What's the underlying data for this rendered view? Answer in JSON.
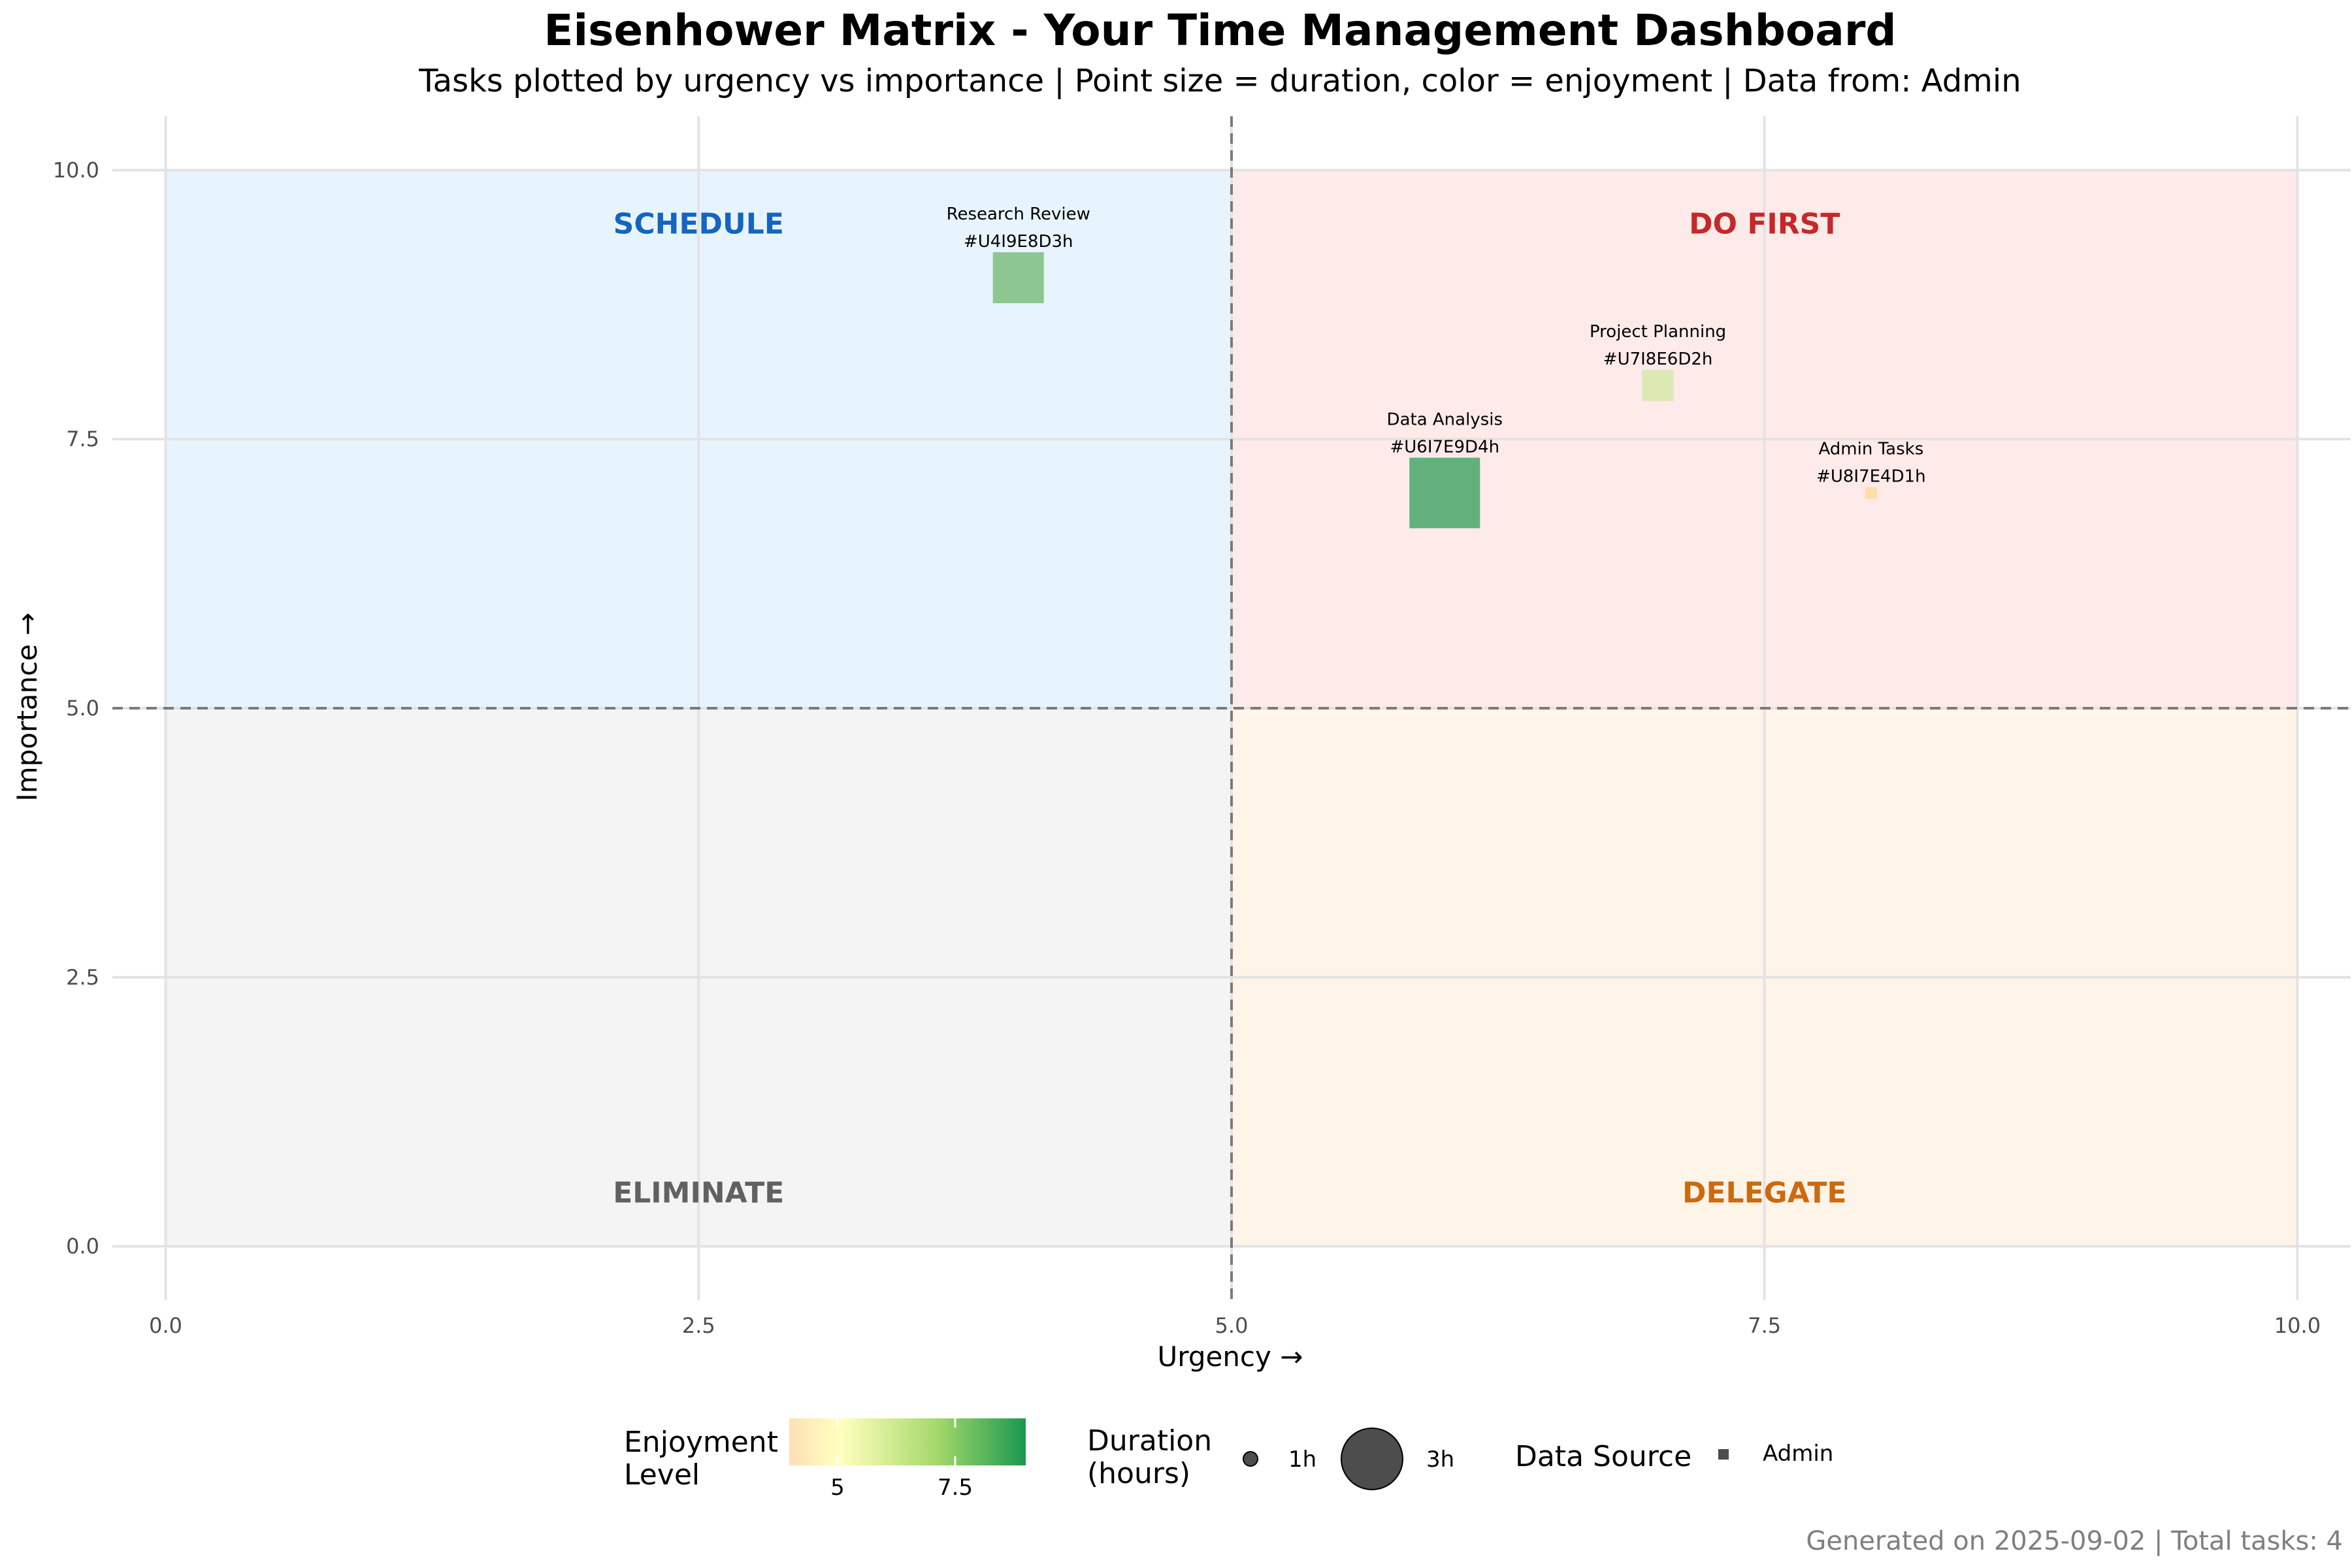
{
  "chart_data": {
    "type": "scatter",
    "title": "Eisenhower Matrix - Your Time Management Dashboard",
    "subtitle": "Tasks plotted by urgency vs importance | Point size = duration, color = enjoyment | Data from: Admin",
    "xlabel": "Urgency →",
    "ylabel": "Importance →",
    "xlim": [
      -0.25,
      10.25
    ],
    "ylim": [
      -0.5,
      10.5
    ],
    "x_ticks": [
      "0.0",
      "2.5",
      "5.0",
      "7.5",
      "10.0"
    ],
    "y_ticks": [
      "0.0",
      "2.5",
      "5.0",
      "7.5",
      "10.0"
    ],
    "grid": true,
    "threshold_lines": {
      "x": 5,
      "y": 5
    },
    "quadrants": [
      {
        "label": "SCHEDULE",
        "x": [
          0,
          5
        ],
        "y": [
          5,
          10
        ],
        "fill": "#e8f4fd",
        "label_color": "#1565c0",
        "label_pos": [
          2.5,
          9.5
        ]
      },
      {
        "label": "DO FIRST",
        "x": [
          5,
          10
        ],
        "y": [
          5,
          10
        ],
        "fill": "#ffeaea",
        "label_color": "#c62828",
        "label_pos": [
          7.5,
          9.5
        ]
      },
      {
        "label": "ELIMINATE",
        "x": [
          0,
          5
        ],
        "y": [
          0,
          5
        ],
        "fill": "#f4f4f4",
        "label_color": "#616161",
        "label_pos": [
          2.5,
          0.5
        ]
      },
      {
        "label": "DELEGATE",
        "x": [
          5,
          10
        ],
        "y": [
          0,
          5
        ],
        "fill": "#fff4e8",
        "label_color": "#cc6a10",
        "label_pos": [
          7.5,
          0.5
        ]
      }
    ],
    "points": [
      {
        "name": "Research Review",
        "id": "#U4I9E8D3h",
        "urgency": 4,
        "importance": 9,
        "enjoyment": 8,
        "duration_h": 3,
        "source": "Admin",
        "color": "#8dc691"
      },
      {
        "name": "Project Planning",
        "id": "#U7I8E6D2h",
        "urgency": 7,
        "importance": 8,
        "enjoyment": 6,
        "duration_h": 2,
        "source": "Admin",
        "color": "#dce9b5"
      },
      {
        "name": "Data Analysis",
        "id": "#U6I7E9D4h",
        "urgency": 6,
        "importance": 7,
        "enjoyment": 9,
        "duration_h": 4,
        "source": "Admin",
        "color": "#62b17c"
      },
      {
        "name": "Admin Tasks",
        "id": "#U8I7E4D1h",
        "urgency": 8,
        "importance": 7,
        "enjoyment": 4,
        "duration_h": 1,
        "source": "Admin",
        "color": "#fedcaa"
      }
    ],
    "legend": {
      "placement": "bottom",
      "enjoyment": {
        "title_line1": "Enjoyment",
        "title_line2": "Level",
        "ticks": [
          "5",
          "7.5"
        ],
        "colors": [
          "#fee0b6",
          "#ffffbf",
          "#a6d96a",
          "#1a9850"
        ]
      },
      "duration": {
        "title_line1": "Duration",
        "title_line2": "(hours)",
        "items": [
          "1h",
          "3h"
        ]
      },
      "source": {
        "title": "Data Source",
        "items": [
          "Admin"
        ]
      }
    },
    "caption": "Generated on 2025-09-02 | Total tasks: 4"
  }
}
